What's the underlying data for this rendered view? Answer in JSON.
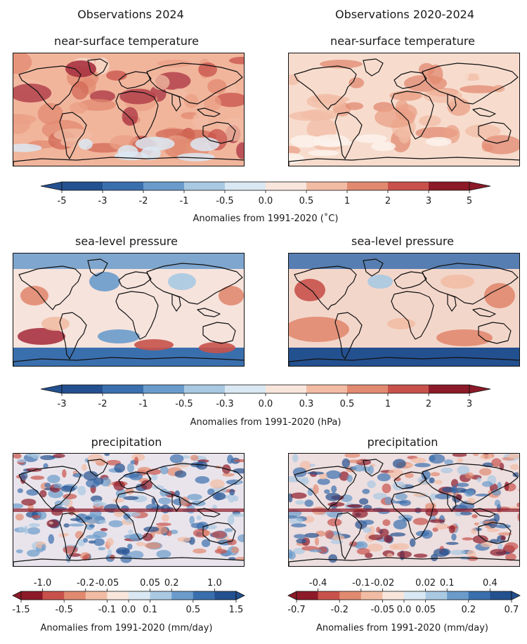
{
  "columns": {
    "left": "Observations 2024",
    "right": "Observations 2020-2024"
  },
  "rows": [
    {
      "id": "temp",
      "left_title": "near-surface temperature",
      "right_title": "near-surface temperature",
      "left_base": "#f1b59c",
      "right_base": "#f7dccd"
    },
    {
      "id": "slp",
      "left_title": "sea-level pressure",
      "right_title": "sea-level pressure",
      "left_base": "#f6e3dc",
      "right_base": "#f3d6ca"
    },
    {
      "id": "precip",
      "left_title": "precipitation",
      "right_title": "precipitation",
      "left_base": "#e9e4ec",
      "right_base": "#eddedf"
    }
  ],
  "colorbars": {
    "temp": {
      "ticks": [
        "-5",
        "-3",
        "-2",
        "-1",
        "-0.5",
        "0.0",
        "0.5",
        "1",
        "2",
        "3",
        "5"
      ],
      "label": "Anomalies from 1991-2020 (˚C)",
      "colors": [
        "#23508f",
        "#3a6fae",
        "#6a9bcb",
        "#a9c9e2",
        "#d9e8f2",
        "#f8e6dc",
        "#f2bca4",
        "#e18a70",
        "#c8524b",
        "#8c1a28"
      ]
    },
    "slp": {
      "ticks": [
        "-3",
        "-2",
        "-1",
        "-0.5",
        "-0.3",
        "0.0",
        "0.3",
        "0.5",
        "1",
        "2",
        "3"
      ],
      "label": "Anomalies from 1991-2020 (hPa)",
      "colors": [
        "#23508f",
        "#3a6fae",
        "#6a9bcb",
        "#a9c9e2",
        "#d9e8f2",
        "#f8e6dc",
        "#f2bca4",
        "#e18a70",
        "#c8524b",
        "#8c1a28"
      ]
    },
    "precip_left": {
      "top_ticks": [
        "-1.0",
        "-0.2",
        "-0.05",
        "0.05",
        "0.2",
        "1.0"
      ],
      "bottom_ticks": [
        "-1.5",
        "-0.5",
        "-0.1",
        "0.0",
        "0.1",
        "0.5",
        "1.5"
      ],
      "label": "Anomalies from 1991-2020 (mm/day)",
      "colors": [
        "#8c1a28",
        "#c8524b",
        "#e18a70",
        "#f2bca4",
        "#f8e6dc",
        "#d9e8f2",
        "#a9c9e2",
        "#6a9bcb",
        "#3a6fae",
        "#23508f"
      ]
    },
    "precip_right": {
      "top_ticks": [
        "-0.4",
        "-0.1",
        "-0.02",
        "0.02",
        "0.1",
        "0.4"
      ],
      "bottom_ticks": [
        "-0.7",
        "-0.2",
        "-0.05",
        "0.0",
        "0.05",
        "0.2",
        "0.7"
      ],
      "label": "Anomalies from 1991-2020 (mm/day)",
      "colors": [
        "#8c1a28",
        "#c8524b",
        "#e18a70",
        "#f2bca4",
        "#f8e6dc",
        "#d9e8f2",
        "#a9c9e2",
        "#6a9bcb",
        "#3a6fae",
        "#23508f"
      ]
    }
  }
}
